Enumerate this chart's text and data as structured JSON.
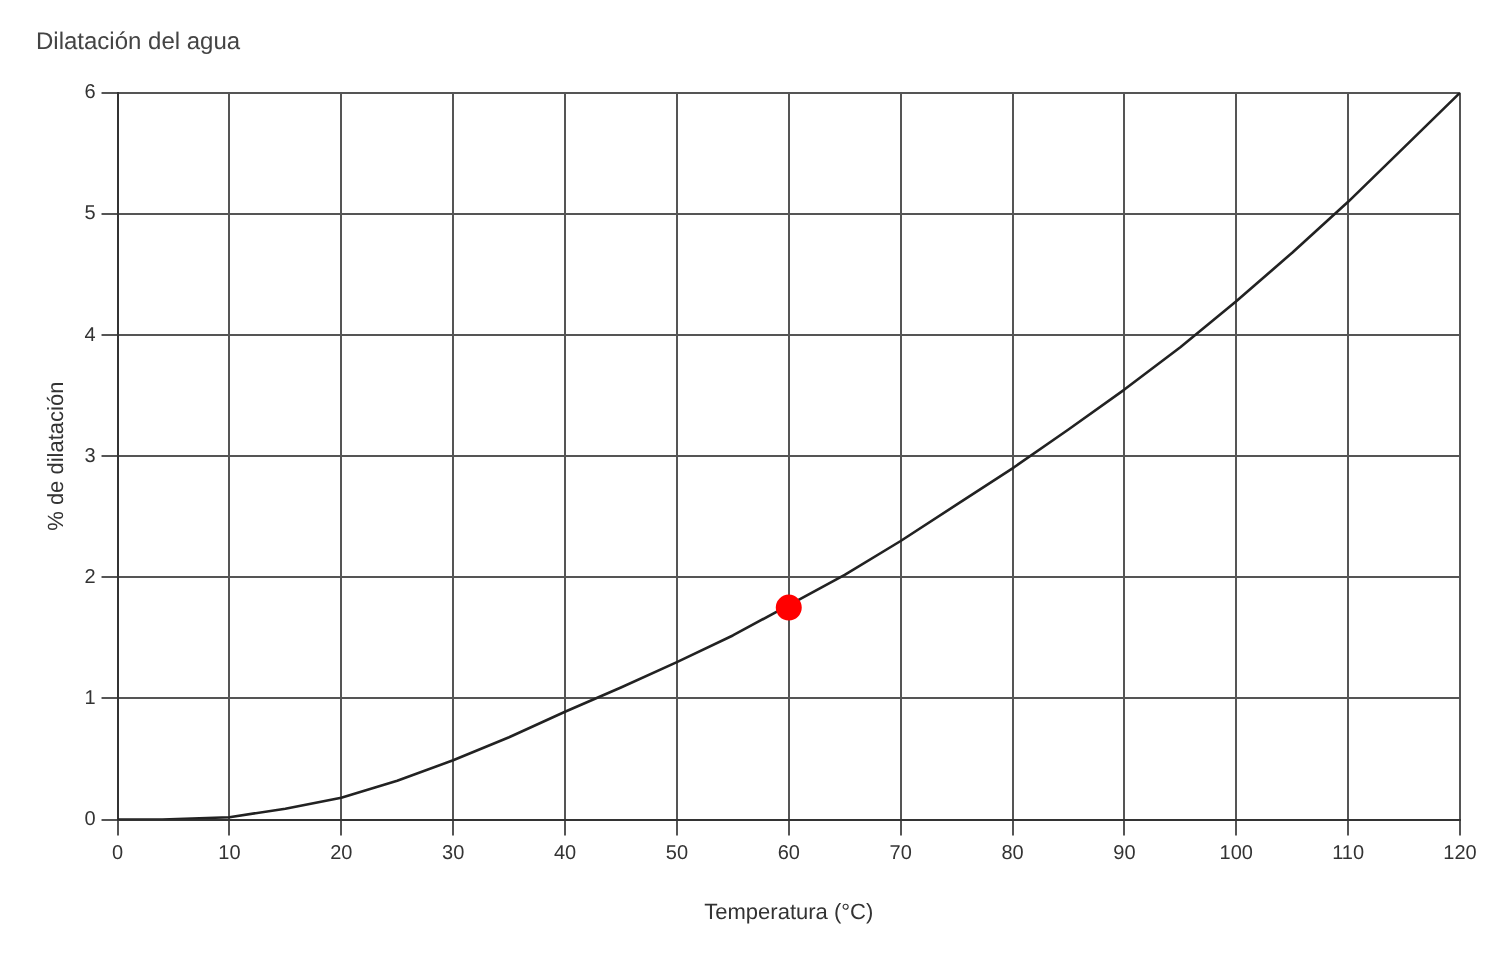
{
  "chart_data": {
    "type": "line",
    "title": "Dilatación del agua",
    "xlabel": "Temperatura (°C)",
    "ylabel": "% de dilatación",
    "xlim": [
      0,
      120
    ],
    "xticks": [
      0,
      10,
      20,
      30,
      40,
      50,
      60,
      70,
      80,
      90,
      100,
      110,
      120
    ],
    "ylim": [
      0,
      6
    ],
    "yticks": [
      0,
      1,
      2,
      3,
      4,
      5,
      6
    ],
    "grid": true,
    "legend": false,
    "series": [
      {
        "type": "line",
        "color": "#222222",
        "marker": "none",
        "line_style": "solid",
        "x": [
          0,
          4,
          10,
          15,
          20,
          25,
          30,
          35,
          40,
          45,
          50,
          55,
          65,
          70,
          75,
          80,
          85,
          90,
          95,
          100,
          105,
          110,
          115,
          120
        ],
        "values": [
          0,
          0,
          0.02,
          0.09,
          0.18,
          0.32,
          0.49,
          0.68,
          0.89,
          1.09,
          1.3,
          1.52,
          2.02,
          2.3,
          2.6,
          2.9,
          3.22,
          3.55,
          3.9,
          4.28,
          4.68,
          5.1,
          5.55,
          6.0
        ]
      },
      {
        "type": "scatter",
        "color": "#ff0000",
        "marker": "circle",
        "x": [
          60
        ],
        "values": [
          1.75
        ]
      }
    ]
  }
}
